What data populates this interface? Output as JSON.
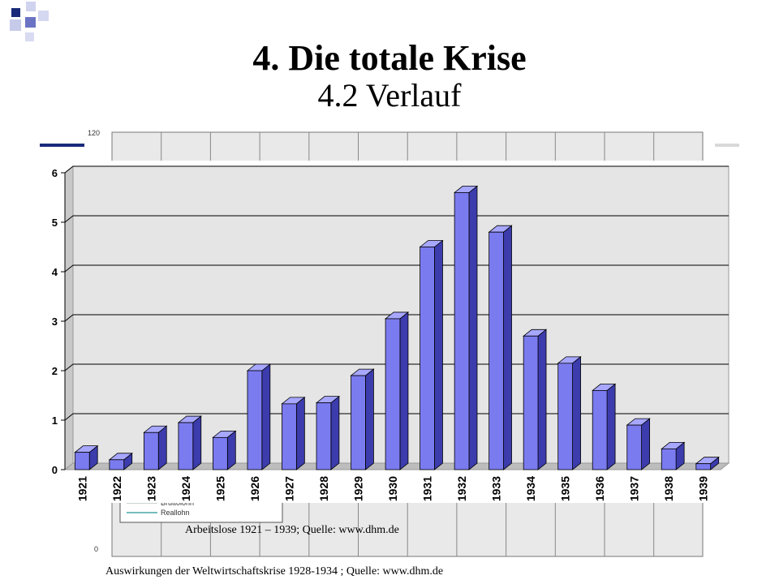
{
  "slide": {
    "title": "4. Die totale Krise",
    "subtitle": "4.2 Verlauf",
    "caption_chart": "Arbeitslose 1921 – 1939; Quelle: www.dhm.de",
    "caption_background": "Auswirkungen der Weltwirtschaftskrise 1928-1934 ; Quelle: www.dhm.de"
  },
  "colors": {
    "bar_front": "#7b7bf0",
    "bar_side": "#3c3cad",
    "bar_top": "#a7a7ff",
    "plot_bg": "#e5e5e5",
    "deco_navy": "#1a2a7a",
    "deco_blue": "#6b74c4"
  },
  "background_chart": {
    "y_ticks": [
      "120",
      "0"
    ],
    "legend_entries": [
      "Bruttolohn",
      "Reallohn"
    ]
  },
  "chart_data": {
    "type": "bar",
    "categories": [
      "1921",
      "1922",
      "1923",
      "1924",
      "1925",
      "1926",
      "1927",
      "1928",
      "1929",
      "1930",
      "1931",
      "1932",
      "1933",
      "1934",
      "1935",
      "1936",
      "1937",
      "1938",
      "1939"
    ],
    "values": [
      0.35,
      0.2,
      0.75,
      0.95,
      0.65,
      2.0,
      1.33,
      1.35,
      1.9,
      3.05,
      4.5,
      5.6,
      4.8,
      2.7,
      2.15,
      1.6,
      0.9,
      0.42,
      0.12
    ],
    "y_ticks": [
      "0",
      "1",
      "2",
      "3",
      "4",
      "5",
      "6"
    ],
    "ylim": [
      0,
      6
    ],
    "title": "",
    "xlabel": "",
    "ylabel": "",
    "grid": true
  }
}
